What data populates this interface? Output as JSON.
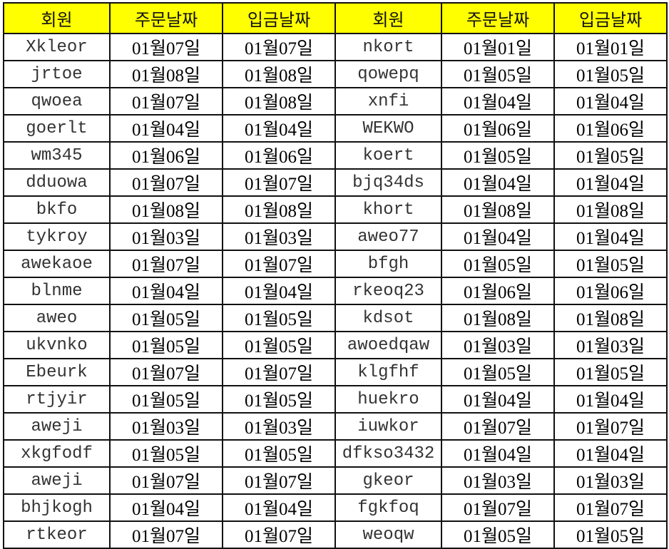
{
  "headers": [
    "회원",
    "주문날짜",
    "입금날짜",
    "회원",
    "주문날짜",
    "입금날짜"
  ],
  "header_color": "#ffff00",
  "rows": [
    [
      "Xkleor",
      "01월07일",
      "01월07일",
      "nkort",
      "01월01일",
      "01월01일"
    ],
    [
      "jrtoe",
      "01월08일",
      "01월08일",
      "qowepq",
      "01월05일",
      "01월05일"
    ],
    [
      "qwoea",
      "01월07일",
      "01월08일",
      "xnfi",
      "01월04일",
      "01월04일"
    ],
    [
      "goerlt",
      "01월04일",
      "01월04일",
      "WEKWO",
      "01월06일",
      "01월06일"
    ],
    [
      "wm345",
      "01월06일",
      "01월06일",
      "koert",
      "01월05일",
      "01월05일"
    ],
    [
      "dduowa",
      "01월07일",
      "01월07일",
      "bjq34ds",
      "01월04일",
      "01월04일"
    ],
    [
      "bkfo",
      "01월08일",
      "01월08일",
      "khort",
      "01월08일",
      "01월08일"
    ],
    [
      "tykroy",
      "01월03일",
      "01월03일",
      "aweo77",
      "01월04일",
      "01월04일"
    ],
    [
      "awekaoe",
      "01월07일",
      "01월07일",
      "bfgh",
      "01월05일",
      "01월05일"
    ],
    [
      "blnme",
      "01월04일",
      "01월04일",
      "rkeoq23",
      "01월06일",
      "01월06일"
    ],
    [
      "aweo",
      "01월05일",
      "01월05일",
      "kdsot",
      "01월08일",
      "01월08일"
    ],
    [
      "ukvnko",
      "01월05일",
      "01월05일",
      "awoedqaw",
      "01월03일",
      "01월03일"
    ],
    [
      "Ebeurk",
      "01월07일",
      "01월07일",
      "klgfhf",
      "01월05일",
      "01월05일"
    ],
    [
      "rtjyir",
      "01월05일",
      "01월05일",
      "huekro",
      "01월04일",
      "01월04일"
    ],
    [
      "aweji",
      "01월03일",
      "01월03일",
      "iuwkor",
      "01월07일",
      "01월07일"
    ],
    [
      "xkgfodf",
      "01월05일",
      "01월05일",
      "dfkso3432",
      "01월04일",
      "01월04일"
    ],
    [
      "aweji",
      "01월07일",
      "01월07일",
      "gkeor",
      "01월03일",
      "01월03일"
    ],
    [
      "bhjkogh",
      "01월04일",
      "01월04일",
      "fgkfoq",
      "01월07일",
      "01월07일"
    ],
    [
      "rtkeor",
      "01월07일",
      "01월07일",
      "weoqw",
      "01월05일",
      "01월05일"
    ]
  ]
}
